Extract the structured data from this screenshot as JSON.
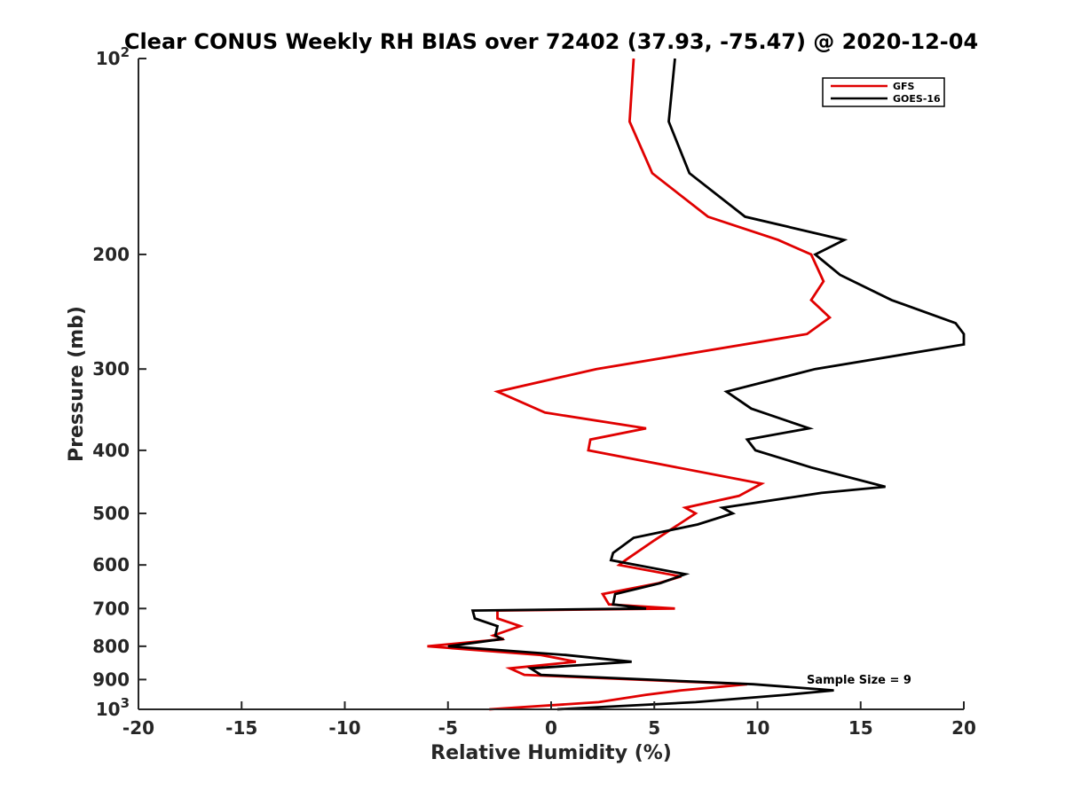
{
  "chart_data": {
    "type": "line",
    "title": "Clear CONUS Weekly RH BIAS over 72402 (37.93, -75.47) @ 2020-12-04",
    "xlabel": "Relative Humidity (%)",
    "ylabel": "Pressure (mb)",
    "xlim": [
      -20,
      20
    ],
    "ylim": [
      100,
      1000
    ],
    "yscale": "log",
    "yreversed": true,
    "xticks": [
      -20,
      -15,
      -10,
      -5,
      0,
      5,
      10,
      15,
      20
    ],
    "xtick_labels": [
      "-20",
      "-15",
      "-10",
      "-5",
      "0",
      "5",
      "10",
      "15",
      "20"
    ],
    "yticks": [
      {
        "value": 100,
        "base": "10",
        "exp": "2"
      },
      {
        "value": 200,
        "label": "200"
      },
      {
        "value": 300,
        "label": "300"
      },
      {
        "value": 400,
        "label": "400"
      },
      {
        "value": 500,
        "label": "500"
      },
      {
        "value": 600,
        "label": "600"
      },
      {
        "value": 700,
        "label": "700"
      },
      {
        "value": 800,
        "label": "800"
      },
      {
        "value": 900,
        "label": "900"
      },
      {
        "value": 1000,
        "base": "10",
        "exp": "3"
      }
    ],
    "legend": {
      "position": "top-right"
    },
    "annotation": "Sample Size = 9",
    "series": [
      {
        "name": "GFS",
        "color": "#e00000",
        "points": [
          [
            4.0,
            100
          ],
          [
            3.8,
            125
          ],
          [
            4.9,
            150
          ],
          [
            7.6,
            175
          ],
          [
            11.0,
            190
          ],
          [
            12.6,
            200
          ],
          [
            13.2,
            220
          ],
          [
            12.6,
            235
          ],
          [
            13.5,
            250
          ],
          [
            12.4,
            265
          ],
          [
            2.2,
            300
          ],
          [
            -2.6,
            325
          ],
          [
            -0.3,
            350
          ],
          [
            4.6,
            370
          ],
          [
            1.9,
            385
          ],
          [
            1.8,
            400
          ],
          [
            10.2,
            450
          ],
          [
            9.1,
            470
          ],
          [
            6.5,
            490
          ],
          [
            7.0,
            500
          ],
          [
            5.0,
            550
          ],
          [
            3.6,
            590
          ],
          [
            3.3,
            600
          ],
          [
            6.3,
            625
          ],
          [
            5.2,
            640
          ],
          [
            2.5,
            665
          ],
          [
            2.8,
            690
          ],
          [
            6.0,
            700
          ],
          [
            -2.6,
            705
          ],
          [
            -2.6,
            725
          ],
          [
            -1.5,
            745
          ],
          [
            -2.8,
            770
          ],
          [
            -2.3,
            780
          ],
          [
            -6.0,
            800
          ],
          [
            -0.5,
            825
          ],
          [
            1.2,
            845
          ],
          [
            -2.0,
            865
          ],
          [
            -1.3,
            885
          ],
          [
            9.5,
            915
          ],
          [
            6.3,
            935
          ],
          [
            4.6,
            950
          ],
          [
            2.3,
            975
          ],
          [
            -3.0,
            1000
          ]
        ]
      },
      {
        "name": "GOES-16",
        "color": "#000000",
        "points": [
          [
            6.0,
            100
          ],
          [
            5.7,
            125
          ],
          [
            6.7,
            150
          ],
          [
            9.4,
            175
          ],
          [
            14.2,
            190
          ],
          [
            12.8,
            200
          ],
          [
            14.0,
            215
          ],
          [
            16.5,
            235
          ],
          [
            19.6,
            255
          ],
          [
            20.0,
            265
          ],
          [
            20.0,
            275
          ],
          [
            12.8,
            300
          ],
          [
            8.5,
            325
          ],
          [
            9.7,
            345
          ],
          [
            12.5,
            370
          ],
          [
            9.5,
            385
          ],
          [
            9.9,
            400
          ],
          [
            12.6,
            425
          ],
          [
            16.2,
            455
          ],
          [
            13.1,
            465
          ],
          [
            8.3,
            490
          ],
          [
            8.8,
            500
          ],
          [
            7.1,
            520
          ],
          [
            4.0,
            545
          ],
          [
            3.0,
            575
          ],
          [
            2.9,
            590
          ],
          [
            6.5,
            620
          ],
          [
            5.3,
            640
          ],
          [
            3.1,
            665
          ],
          [
            3.0,
            690
          ],
          [
            4.6,
            700
          ],
          [
            -3.8,
            705
          ],
          [
            -3.7,
            725
          ],
          [
            -2.6,
            745
          ],
          [
            -2.7,
            770
          ],
          [
            -2.4,
            780
          ],
          [
            -5.0,
            800
          ],
          [
            0.7,
            825
          ],
          [
            3.9,
            845
          ],
          [
            -1.0,
            865
          ],
          [
            -0.5,
            885
          ],
          [
            9.8,
            915
          ],
          [
            13.7,
            935
          ],
          [
            11.4,
            950
          ],
          [
            7.0,
            975
          ],
          [
            0.3,
            1000
          ]
        ]
      }
    ]
  }
}
